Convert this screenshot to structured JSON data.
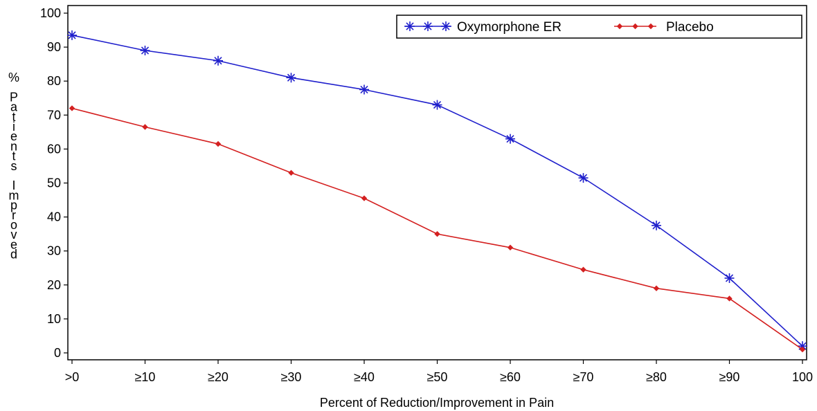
{
  "chart_data": {
    "type": "line",
    "title": "",
    "xlabel": "Percent of Reduction/Improvement in Pain",
    "ylabel": "% Patients Improved",
    "categories": [
      ">0",
      "≥10",
      "≥20",
      "≥30",
      "≥40",
      "≥50",
      "≥60",
      "≥70",
      "≥80",
      "≥90",
      "100"
    ],
    "ylim": [
      0,
      100
    ],
    "yticks": [
      0,
      10,
      20,
      30,
      40,
      50,
      60,
      70,
      80,
      90,
      100
    ],
    "grid": false,
    "legend_position": "top-right",
    "series": [
      {
        "name": "Oxymorphone ER",
        "color": "#1f1fcc",
        "marker": "star",
        "values": [
          93.5,
          89,
          86,
          81,
          77.5,
          73,
          63,
          51.5,
          37.5,
          22,
          2
        ]
      },
      {
        "name": "Placebo",
        "color": "#d42020",
        "marker": "diamond",
        "values": [
          72,
          66.5,
          61.5,
          53,
          45.5,
          35,
          31,
          24.5,
          19,
          16,
          1
        ]
      }
    ]
  }
}
